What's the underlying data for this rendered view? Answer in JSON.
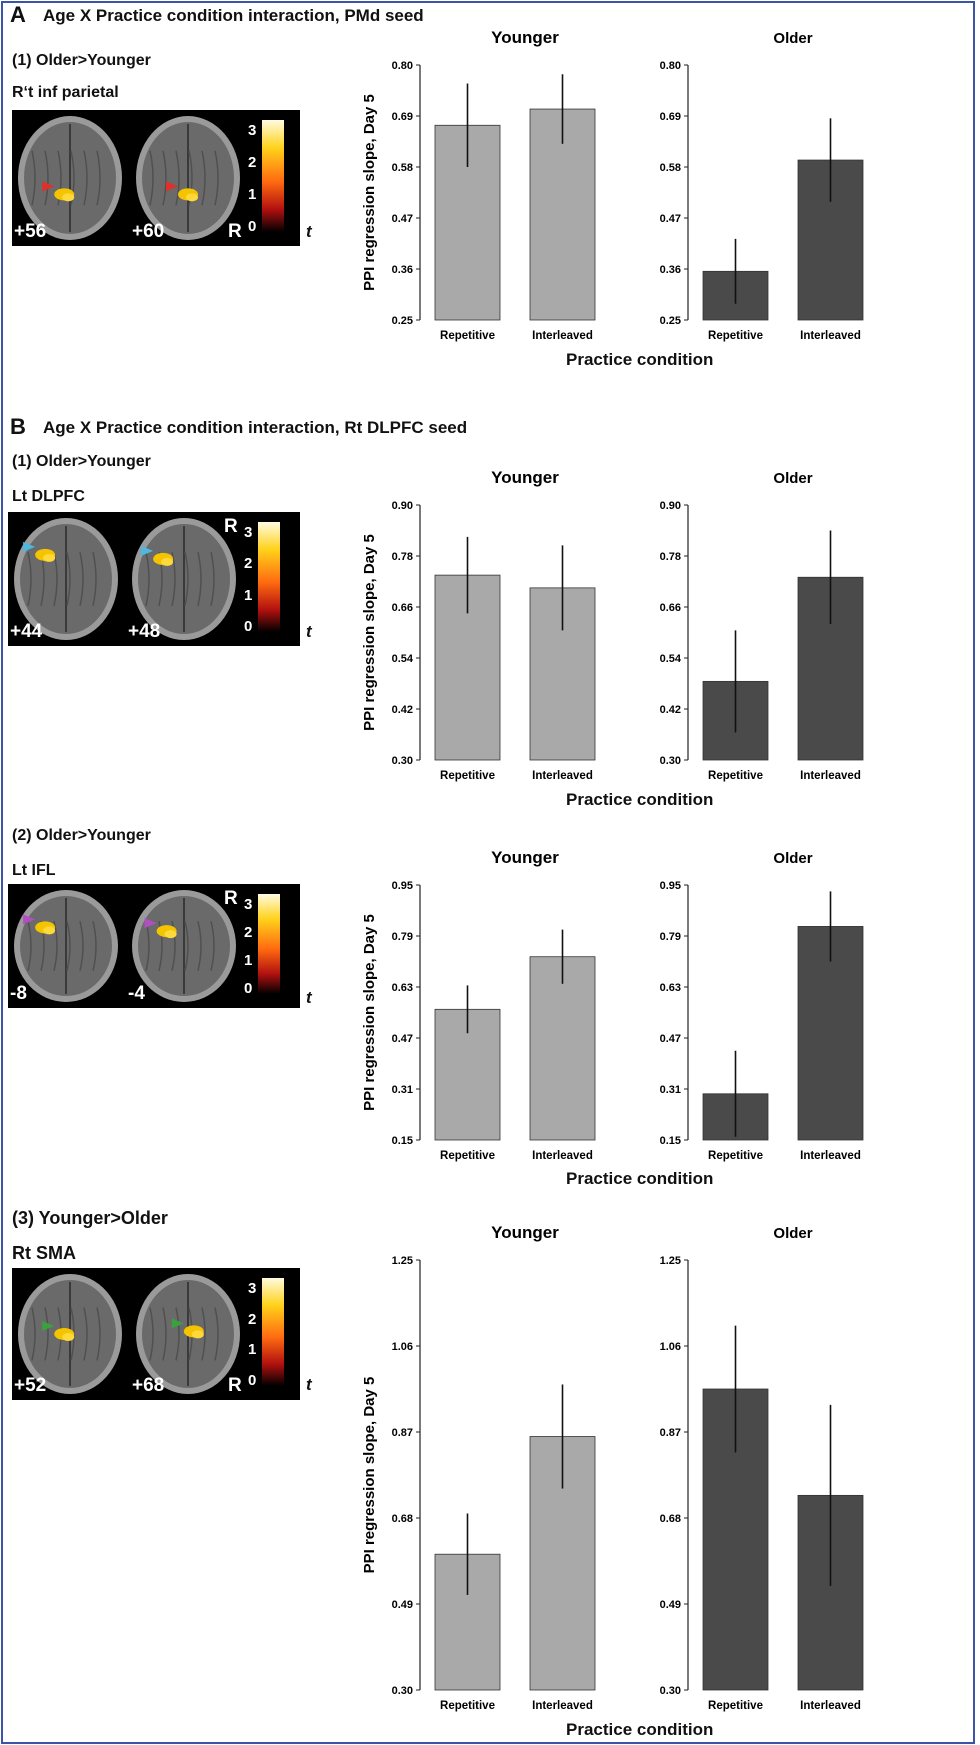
{
  "panels": [
    {
      "letter": "A",
      "title": "Age X Practice condition interaction, PMd seed",
      "rows": [
        {
          "comparison": "(1) Older>Younger",
          "region": "R‘t inf parietal",
          "brain": {
            "slices": [
              "+56",
              "+60"
            ],
            "r_label": "R",
            "r_on_slice": 1,
            "r_pos": "bottom",
            "colorbar_ticks": [
              "3",
              "2",
              "1",
              "0"
            ],
            "t_label": "t",
            "blob_color": "#f5c400",
            "arrow_color": "#e0302a"
          },
          "xlabel": "Practice condition"
        }
      ]
    },
    {
      "letter": "B",
      "title": "Age X Practice condition interaction, Rt DLPFC seed",
      "rows": [
        {
          "comparison": "(1) Older>Younger",
          "region": "Lt DLPFC",
          "brain": {
            "slices": [
              "+44",
              "+48"
            ],
            "r_label": "R",
            "r_on_slice": 1,
            "r_pos": "top",
            "colorbar_ticks": [
              "3",
              "2",
              "1",
              "0"
            ],
            "t_label": "t",
            "blob_color": "#f5c400",
            "arrow_color": "#4fb8e0"
          },
          "xlabel": "Practice condition"
        },
        {
          "comparison": "(2) Older>Younger",
          "region": "Lt IFL",
          "brain": {
            "slices": [
              "-8",
              "-4"
            ],
            "r_label": "R",
            "r_on_slice": 1,
            "r_pos": "top",
            "colorbar_ticks": [
              "3",
              "2",
              "1",
              "0"
            ],
            "t_label": "t",
            "blob_color": "#f5c400",
            "arrow_color": "#b04fc0"
          },
          "xlabel": "Practice condition"
        },
        {
          "comparison": "(3) Younger>Older",
          "region": "Rt SMA",
          "brain": {
            "slices": [
              "+52",
              "+68"
            ],
            "r_label": "R",
            "r_on_slice": 1,
            "r_pos": "bottom",
            "colorbar_ticks": [
              "3",
              "2",
              "1",
              "0"
            ],
            "t_label": "t",
            "blob_color": "#f5c400",
            "arrow_color": "#3aa040"
          },
          "xlabel": "Practice condition"
        }
      ]
    }
  ],
  "colors": {
    "younger_bar": "#a9a9a9",
    "older_bar": "#4a4a4a",
    "border": "#3a55a8"
  },
  "chart_data": [
    {
      "type": "bar",
      "title": "Younger",
      "ylabel": "PPI regression slope, Day 5",
      "categories": [
        "Repetitive",
        "Interleaved"
      ],
      "values": [
        0.67,
        0.705
      ],
      "errors": [
        0.09,
        0.075
      ],
      "ylim": [
        0.25,
        0.8
      ],
      "yticks": [
        "0.25",
        "0.36",
        "0.47",
        "0.58",
        "0.69",
        "0.80"
      ]
    },
    {
      "type": "bar",
      "title": "Older",
      "ylabel": "",
      "categories": [
        "Repetitive",
        "Interleaved"
      ],
      "values": [
        0.355,
        0.595
      ],
      "errors": [
        0.07,
        0.09
      ],
      "ylim": [
        0.25,
        0.8
      ],
      "yticks": [
        "0.25",
        "0.36",
        "0.47",
        "0.58",
        "0.69",
        "0.80"
      ]
    },
    {
      "type": "bar",
      "title": "Younger",
      "ylabel": "PPI regression slope, Day 5",
      "categories": [
        "Repetitive",
        "Interleaved"
      ],
      "values": [
        0.735,
        0.705
      ],
      "errors": [
        0.09,
        0.1
      ],
      "ylim": [
        0.3,
        0.9
      ],
      "yticks": [
        "0.30",
        "0.42",
        "0.54",
        "0.66",
        "0.78",
        "0.90"
      ]
    },
    {
      "type": "bar",
      "title": "Older",
      "ylabel": "",
      "categories": [
        "Repetitive",
        "Interleaved"
      ],
      "values": [
        0.485,
        0.73
      ],
      "errors": [
        0.12,
        0.11
      ],
      "ylim": [
        0.3,
        0.9
      ],
      "yticks": [
        "0.30",
        "0.42",
        "0.54",
        "0.66",
        "0.78",
        "0.90"
      ]
    },
    {
      "type": "bar",
      "title": "Younger",
      "ylabel": "PPI regression slope, Day 5",
      "categories": [
        "Repetitive",
        "Interleaved"
      ],
      "values": [
        0.56,
        0.725
      ],
      "errors": [
        0.075,
        0.085
      ],
      "ylim": [
        0.15,
        0.95
      ],
      "yticks": [
        "0.15",
        "0.31",
        "0.47",
        "0.63",
        "0.79",
        "0.95"
      ]
    },
    {
      "type": "bar",
      "title": "Older",
      "ylabel": "",
      "categories": [
        "Repetitive",
        "Interleaved"
      ],
      "values": [
        0.295,
        0.82
      ],
      "errors": [
        0.135,
        0.11
      ],
      "ylim": [
        0.15,
        0.95
      ],
      "yticks": [
        "0.15",
        "0.31",
        "0.47",
        "0.63",
        "0.79",
        "0.95"
      ]
    },
    {
      "type": "bar",
      "title": "Younger",
      "ylabel": "PPI regression slope, Day 5",
      "categories": [
        "Repetitive",
        "Interleaved"
      ],
      "values": [
        0.6,
        0.86
      ],
      "errors": [
        0.09,
        0.115
      ],
      "ylim": [
        0.3,
        1.25
      ],
      "yticks": [
        "0.30",
        "0.49",
        "0.68",
        "0.87",
        "1.06",
        "1.25"
      ]
    },
    {
      "type": "bar",
      "title": "Older",
      "ylabel": "",
      "categories": [
        "Repetitive",
        "Interleaved"
      ],
      "values": [
        0.965,
        0.73
      ],
      "errors": [
        0.14,
        0.2
      ],
      "ylim": [
        0.3,
        1.25
      ],
      "yticks": [
        "0.30",
        "0.49",
        "0.68",
        "0.87",
        "1.06",
        "1.25"
      ]
    }
  ]
}
